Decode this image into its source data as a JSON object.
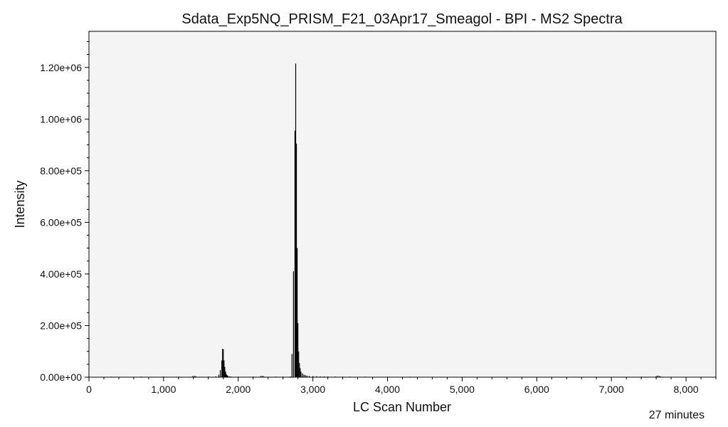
{
  "chart_data": {
    "type": "bar",
    "title": "Sdata_Exp5NQ_PRISM_F21_03Apr17_Smeagol - BPI - MS2 Spectra",
    "xlabel": "LC Scan Number",
    "ylabel": "Intensity",
    "footnote": "27 minutes",
    "xlim": [
      0,
      8400
    ],
    "ylim": [
      0,
      1340000
    ],
    "x_ticks": [
      0,
      1000,
      2000,
      3000,
      4000,
      5000,
      6000,
      7000,
      8000
    ],
    "x_tick_labels": [
      "0",
      "1,000",
      "2,000",
      "3,000",
      "4,000",
      "5,000",
      "6,000",
      "7,000",
      "8,000"
    ],
    "y_ticks": [
      0,
      200000,
      400000,
      600000,
      800000,
      1000000,
      1200000
    ],
    "y_tick_labels": [
      "0.00e+00",
      "2.00e+05",
      "4.00e+05",
      "6.00e+05",
      "8.00e+05",
      "1.00e+06",
      "1.20e+06"
    ],
    "grid": false,
    "plot_background": "#f4f4f4",
    "bar_color": "#000000",
    "series": [
      {
        "x": [
          300,
          700,
          1000,
          1200,
          1390,
          1410,
          1430,
          1600,
          1700,
          1740,
          1760,
          1780,
          1790,
          1800,
          1810,
          1820,
          1830,
          1840,
          1850,
          1860,
          1880,
          1900,
          2000,
          2200,
          2300,
          2320,
          2340,
          2500,
          2600,
          2700,
          2720,
          2740,
          2760,
          2770,
          2780,
          2790,
          2800,
          2810,
          2820,
          2830,
          2840,
          2860,
          2880,
          2900,
          2920,
          2950,
          3000,
          3050,
          3100,
          3150,
          3200,
          3300,
          3400,
          3500,
          3700,
          4000,
          4300,
          4700,
          5000,
          5500,
          6000,
          6500,
          7000,
          7400,
          7600,
          7620,
          7640,
          7660,
          7800,
          8200
        ],
        "y": [
          2000,
          2000,
          2500,
          2000,
          4000,
          5000,
          4000,
          2500,
          3000,
          10000,
          28000,
          65000,
          110000,
          108000,
          65000,
          40000,
          22000,
          12000,
          8000,
          5000,
          3000,
          2500,
          2000,
          2500,
          4000,
          5000,
          4000,
          2000,
          2500,
          3000,
          90000,
          410000,
          955000,
          1215000,
          905000,
          500000,
          210000,
          100000,
          55000,
          35000,
          22000,
          15000,
          10000,
          8000,
          6000,
          5000,
          4000,
          3500,
          3000,
          3000,
          2500,
          2500,
          2000,
          2000,
          2000,
          2000,
          2000,
          1500,
          1500,
          1500,
          1500,
          1500,
          1500,
          2000,
          4000,
          6000,
          5000,
          3000,
          1500,
          1500
        ]
      }
    ]
  }
}
